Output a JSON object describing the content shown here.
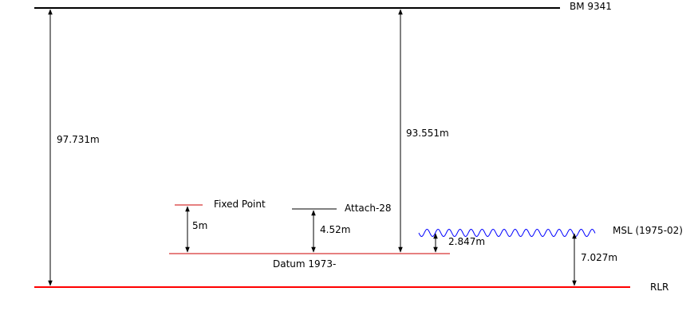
{
  "levels": {
    "bm": {
      "label": "BM 9341"
    },
    "rlr": {
      "label": "RLR"
    },
    "datum": {
      "label": "Datum 1973-"
    },
    "fixed_point": {
      "label": "Fixed Point"
    },
    "attach": {
      "label": "Attach-28"
    },
    "msl": {
      "label": "MSL (1975-02)"
    }
  },
  "measurements": {
    "bm_to_rlr": "97.731m",
    "bm_to_datum": "93.551m",
    "fixed_to_datum": "5m",
    "attach_to_datum": "4.52m",
    "msl_to_datum": "2.847m",
    "msl_to_rlr": "7.027m"
  },
  "colors": {
    "line": "#000000",
    "red_line": "#ff0000",
    "datum_line": "#cc0000",
    "wave": "#0000ff"
  }
}
